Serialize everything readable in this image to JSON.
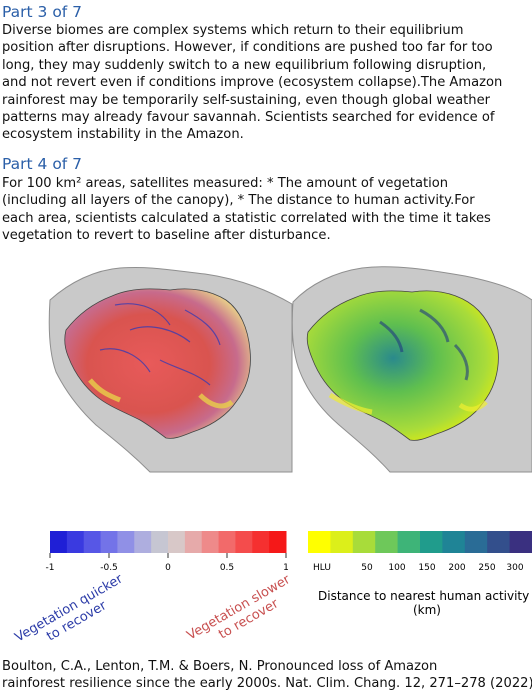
{
  "part3": {
    "heading": "Part 3 of 7",
    "lines": [
      "Diverse biomes are complex systems which return to their equilibrium",
      "position after disruptions. However, if conditions are pushed too far for too",
      "long, they may suddenly switch to a new equilibrium following disruption,",
      "and not revert even if conditions improve (ecosystem collapse).The Amazon",
      "rainforest may be temporarily self-sustaining, even though global weather",
      "patterns may already favour savannah. Scientists searched for evidence of",
      "ecosystem instability in the Amazon."
    ]
  },
  "part4": {
    "heading": "Part 4 of 7",
    "lines": [
      "For 100 km² areas, satellites measured: * The amount of vegetation",
      "(including all layers of the canopy),  * The distance to human activity.For",
      "each area, scientists calculated a statistic correlated with the time it takes",
      "vegetation to revert to baseline after disturbance."
    ]
  },
  "figure": {
    "left_colorbar": {
      "ticks": [
        "-1",
        "-0.5",
        "0",
        "0.5",
        "1"
      ],
      "colors": [
        "#1f1fd6",
        "#3a3ae0",
        "#5757e6",
        "#7373e8",
        "#9090e6",
        "#aeaedf",
        "#c6c6d2",
        "#d8c8c8",
        "#e6aaaa",
        "#ee8a8a",
        "#f26a6a",
        "#f44c4c",
        "#f53030",
        "#f51818"
      ]
    },
    "right_colorbar": {
      "ticks": [
        "HLU",
        "50",
        "100",
        "150",
        "200",
        "250",
        "300"
      ],
      "title_line1": "Distance to nearest human activity",
      "title_line2": "(km)",
      "colors": [
        "#ffff00",
        "#dcef1a",
        "#a8dc3a",
        "#6ec85a",
        "#3eb478",
        "#209c8c",
        "#1f8496",
        "#2a6c96",
        "#334f8c",
        "#3a3080"
      ]
    },
    "annotation_quicker": [
      "Vegetation quicker",
      "to recover"
    ],
    "annotation_slower": [
      "Vegetation slower",
      "to recover"
    ],
    "colors": {
      "quicker": "#2c3ca8",
      "slower": "#c85050"
    }
  },
  "citation": {
    "lines": [
      "Boulton, C.A., Lenton, T.M. & Boers, N. Pronounced loss of Amazon",
      "rainforest resilience since the early 2000s. Nat. Clim. Chang. 12, 271–278 (2022)."
    ]
  }
}
